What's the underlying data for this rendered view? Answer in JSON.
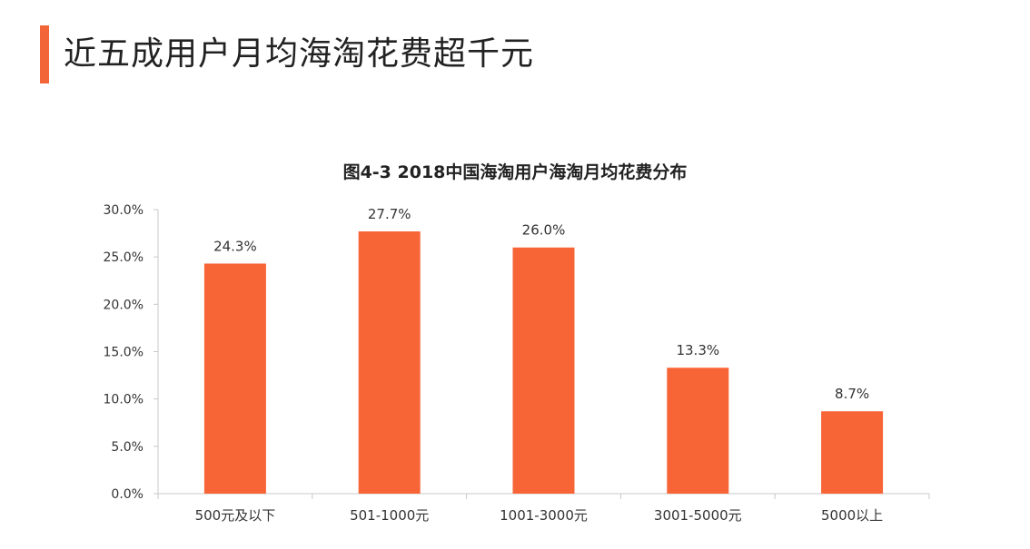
{
  "headline": "近五成用户月均海淘花费超千元",
  "colors": {
    "accent": "#F26538",
    "bar": "#F76436",
    "text": "#222222",
    "axis": "#c8c8c8"
  },
  "chart_data": {
    "type": "bar",
    "title": "图4-3 2018中国海淘用户海淘月均花费分布",
    "categories": [
      "500元及以下",
      "501-1000元",
      "1001-3000元",
      "3001-5000元",
      "5000以上"
    ],
    "values": [
      24.3,
      27.7,
      26.0,
      13.3,
      8.7
    ],
    "value_labels": [
      "24.3%",
      "27.7%",
      "26.0%",
      "13.3%",
      "8.7%"
    ],
    "ylim": [
      0,
      30
    ],
    "yticks": [
      0,
      5,
      10,
      15,
      20,
      25,
      30
    ],
    "ytick_labels": [
      "0.0%",
      "5.0%",
      "10.0%",
      "15.0%",
      "20.0%",
      "25.0%",
      "30.0%"
    ],
    "xlabel": "",
    "ylabel": "",
    "grid": false,
    "legend": "none"
  }
}
